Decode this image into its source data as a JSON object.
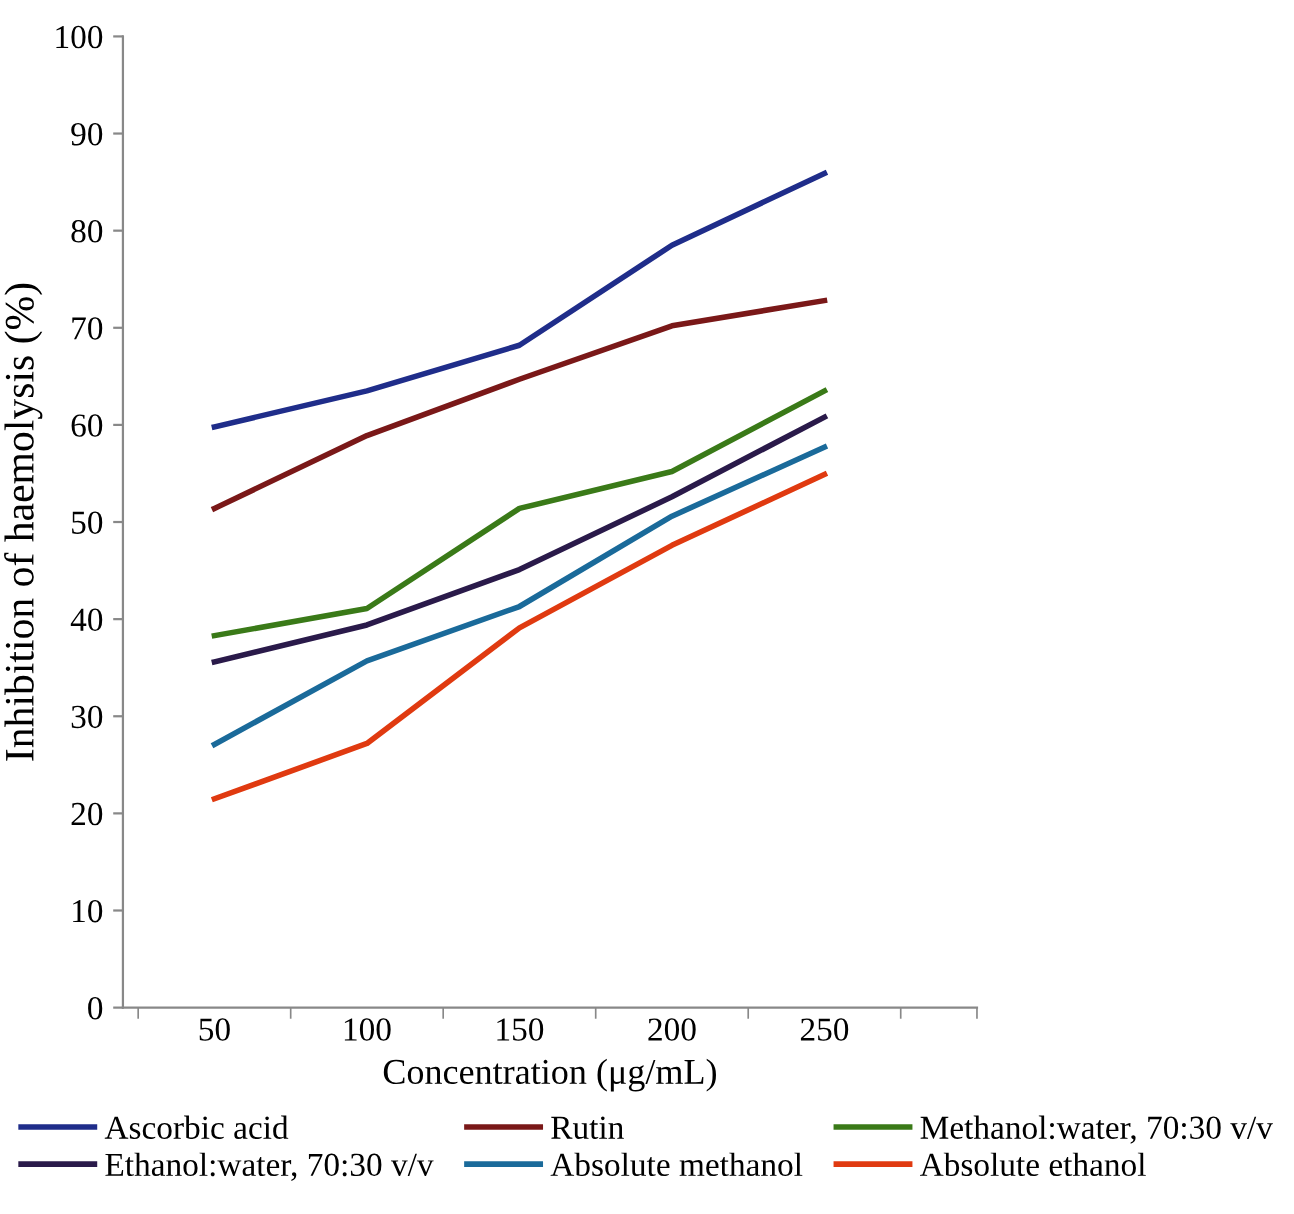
{
  "chart_data": {
    "type": "line",
    "xlabel": "Concentration (μg/mL)",
    "ylabel": "Inhibition of haemolysis (%)",
    "categories": [
      "50",
      "100",
      "150",
      "200",
      "250"
    ],
    "series": [
      {
        "name": "Ascorbic acid",
        "color": "#1f2d8a",
        "values": [
          59.8,
          63.5,
          68.2,
          78.5,
          85.9
        ]
      },
      {
        "name": "Rutin",
        "color": "#7a1818",
        "values": [
          51.4,
          58.9,
          64.7,
          70.2,
          72.8
        ]
      },
      {
        "name": "Methanol:water, 70:30 v/v",
        "color": "#3a7a18",
        "values": [
          38.3,
          41.1,
          51.4,
          55.2,
          63.5
        ]
      },
      {
        "name": "Ethanol:water, 70:30 v/v",
        "color": "#2a1a4a",
        "values": [
          35.6,
          39.4,
          45.1,
          52.6,
          60.8
        ]
      },
      {
        "name": "Absolute methanol",
        "color": "#1a6a9a",
        "values": [
          27.1,
          35.7,
          41.3,
          50.6,
          57.7
        ]
      },
      {
        "name": "Absolute ethanol",
        "color": "#e03a10",
        "values": [
          21.5,
          27.2,
          39.1,
          47.6,
          54.9
        ]
      }
    ],
    "ylim": [
      0,
      100
    ],
    "yticks": [
      0,
      10,
      20,
      30,
      40,
      50,
      60,
      70,
      80,
      90,
      100
    ],
    "grid": false,
    "legend": "bottom",
    "marker": "none",
    "line_style": "solid"
  }
}
